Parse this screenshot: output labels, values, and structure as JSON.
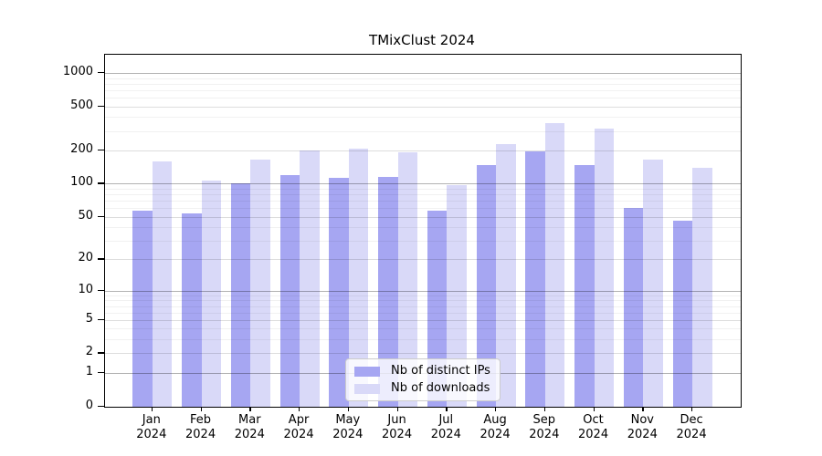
{
  "title": "TMixClust 2024",
  "chart_data": {
    "type": "bar",
    "title": "TMixClust 2024",
    "categories": [
      "Jan 2024",
      "Feb 2024",
      "Mar 2024",
      "Apr 2024",
      "May 2024",
      "Jun 2024",
      "Jul 2024",
      "Aug 2024",
      "Sep 2024",
      "Oct 2024",
      "Nov 2024",
      "Dec 2024"
    ],
    "series": [
      {
        "name": "Nb of distinct IPs",
        "color": "#a6a6f2",
        "values": [
          57,
          54,
          100,
          120,
          113,
          116,
          57,
          147,
          198,
          148,
          60,
          46
        ]
      },
      {
        "name": "Nb of downloads",
        "color": "#d9d9f8",
        "values": [
          160,
          107,
          164,
          199,
          207,
          192,
          97,
          229,
          352,
          313,
          165,
          139
        ]
      }
    ],
    "yticks": [
      0,
      1,
      2,
      5,
      10,
      20,
      50,
      100,
      200,
      500,
      1000
    ],
    "scale": "log(value+1)",
    "ylim": [
      0,
      1460
    ],
    "grid": "both",
    "legend_position": "lower center",
    "xlabel": "",
    "ylabel": ""
  },
  "legend": {
    "items": [
      {
        "label": "Nb of distinct IPs"
      },
      {
        "label": "Nb of downloads"
      }
    ]
  },
  "colors": {
    "bar_distinct_ips": "#a6a6f2",
    "bar_downloads": "#d9d9f8",
    "grid_major": "#b3b3b3",
    "grid_minor": "#f1f1f1",
    "axis": "#000000",
    "legend_border": "#cccccc"
  }
}
